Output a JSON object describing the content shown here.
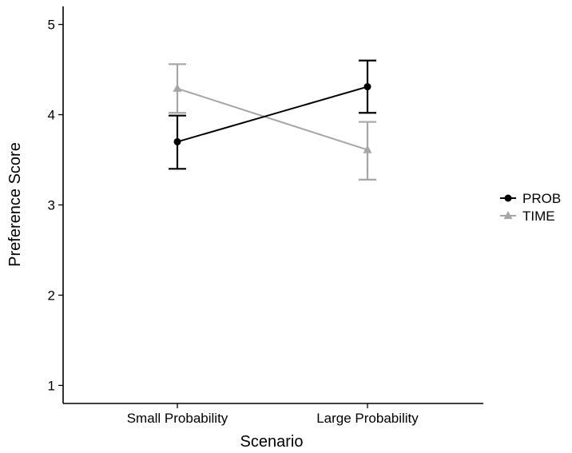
{
  "chart_data": {
    "type": "line",
    "title": "",
    "xlabel": "Scenario",
    "ylabel": "Preference Score",
    "categories": [
      "Small Probability",
      "Large Probability"
    ],
    "ylim": [
      0.8,
      5.2
    ],
    "yticks": [
      1,
      2,
      3,
      4,
      5
    ],
    "grid": false,
    "legend": {
      "placement": "right",
      "entries": [
        "PROB",
        "TIME"
      ]
    },
    "series": [
      {
        "name": "PROB",
        "marker": "circle",
        "color": "#000000",
        "values": [
          3.7,
          4.31
        ],
        "error_low": [
          3.4,
          4.02
        ],
        "error_high": [
          3.99,
          4.6
        ]
      },
      {
        "name": "TIME",
        "marker": "triangle",
        "color": "#a6a6a6",
        "values": [
          4.29,
          3.61
        ],
        "error_low": [
          4.02,
          3.28
        ],
        "error_high": [
          4.56,
          3.92
        ]
      }
    ]
  }
}
